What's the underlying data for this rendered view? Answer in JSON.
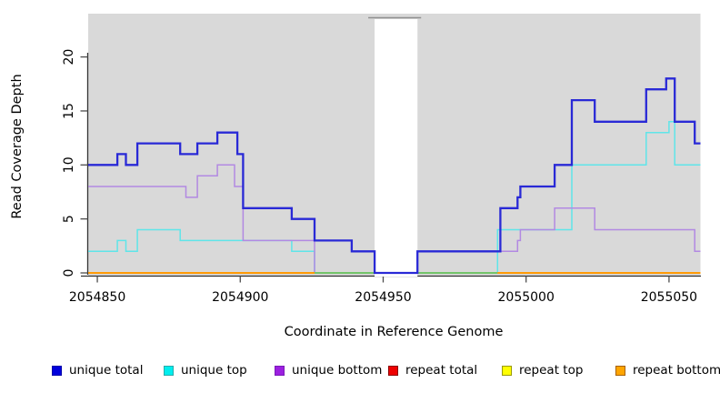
{
  "axis_titles": {
    "x": "Coordinate in Reference Genome",
    "y": "Read Coverage Depth"
  },
  "legend": {
    "items": [
      {
        "label": "unique total",
        "color": "#0000dd",
        "border": "#0000aa"
      },
      {
        "label": "unique top",
        "color": "#00eeee",
        "border": "#2aabab"
      },
      {
        "label": "unique bottom",
        "color": "#9c20e0",
        "border": "#7a1ab8"
      },
      {
        "label": "repeat total",
        "color": "#ee0000",
        "border": "#8b0000"
      },
      {
        "label": "repeat top",
        "color": "#ffff00",
        "border": "#999900"
      },
      {
        "label": "repeat bottom",
        "color": "#ffa500",
        "border": "#a66000"
      }
    ]
  },
  "colors": {
    "plot_bg": "#d9d9d9",
    "gap_fill": "#ffffff",
    "gap_top_line": "#909090",
    "axis_line": "#333333",
    "tick_mark": "#4d4d4d"
  },
  "chart_data": {
    "type": "line",
    "subtype": "step",
    "title": "",
    "xlabel": "Coordinate in Reference Genome",
    "ylabel": "Read Coverage Depth",
    "x_domain": [
      2054846.8,
      2055061
    ],
    "y_domain": [
      0,
      23.8
    ],
    "x_ticks": [
      2054850,
      2054900,
      2054950,
      2055000,
      2055050
    ],
    "y_ticks": [
      0,
      5,
      10,
      15,
      20
    ],
    "grid": false,
    "legend_position": "bottom",
    "no_data_gap_x": [
      2054947,
      2054962
    ],
    "series": [
      {
        "name": "repeat total",
        "color": "#dd0000",
        "width": 1.5,
        "points": [
          [
            2054846.8,
            0
          ]
        ],
        "end": 2055061
      },
      {
        "name": "repeat top",
        "color": "#ffff00",
        "width": 1.5,
        "points": [
          [
            2054846.8,
            0
          ]
        ],
        "end": 2055061
      },
      {
        "name": "unique top",
        "color": "#5fe5e9",
        "width": 1.5,
        "points": [
          [
            2054846.8,
            2
          ],
          [
            2054857,
            3
          ],
          [
            2054860,
            2
          ],
          [
            2054864,
            4
          ],
          [
            2054879,
            3
          ],
          [
            2054918,
            2
          ],
          [
            2054926,
            0
          ],
          [
            2054990,
            4
          ],
          [
            2055016,
            10
          ],
          [
            2055042,
            13
          ],
          [
            2055050,
            14
          ],
          [
            2055052,
            10
          ]
        ],
        "end": 2055061
      },
      {
        "name": "unique bottom",
        "color": "#b289e2",
        "width": 1.5,
        "points": [
          [
            2054846.8,
            8
          ],
          [
            2054881,
            7
          ],
          [
            2054885,
            9
          ],
          [
            2054892,
            10
          ],
          [
            2054898,
            8
          ],
          [
            2054901,
            3
          ],
          [
            2054926,
            0
          ],
          [
            2054962,
            2
          ],
          [
            2054997,
            3
          ],
          [
            2054998,
            4
          ],
          [
            2055010,
            6
          ],
          [
            2055024,
            4
          ],
          [
            2055059,
            2
          ]
        ],
        "end": 2055061
      },
      {
        "name": "repeat bottom",
        "color": "#ff9b06",
        "width": 2,
        "points": [
          [
            2054846.8,
            0
          ]
        ],
        "end": 2055061,
        "skip_gap": true
      },
      {
        "name": "unique total",
        "color": "#2929d6",
        "width": 2.3,
        "points": [
          [
            2054846.8,
            10
          ],
          [
            2054857,
            11
          ],
          [
            2054860,
            10
          ],
          [
            2054864,
            12
          ],
          [
            2054879,
            11
          ],
          [
            2054885,
            12
          ],
          [
            2054892,
            13
          ],
          [
            2054899,
            11
          ],
          [
            2054901,
            6
          ],
          [
            2054918,
            5
          ],
          [
            2054926,
            3
          ],
          [
            2054939,
            2
          ],
          [
            2054947,
            0
          ],
          [
            2054962,
            2
          ],
          [
            2054991,
            6
          ],
          [
            2054997,
            7
          ],
          [
            2054998,
            8
          ],
          [
            2055010,
            10
          ],
          [
            2055016,
            16
          ],
          [
            2055024,
            14
          ],
          [
            2055042,
            17
          ],
          [
            2055049,
            18
          ],
          [
            2055052,
            14
          ],
          [
            2055059,
            12
          ]
        ],
        "end": 2055061
      }
    ],
    "zero_overlap_segments": {
      "comment_color": "rgba(0,230,190,0.55)",
      "ranges": [
        [
          2054926,
          2054947
        ],
        [
          2054962,
          2054990
        ]
      ]
    }
  }
}
